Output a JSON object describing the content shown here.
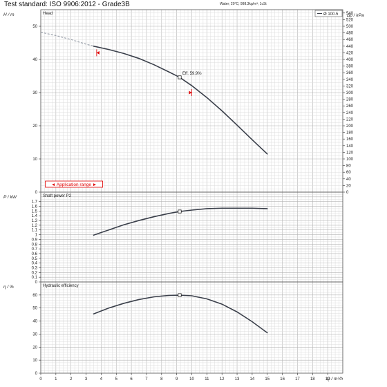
{
  "header": {
    "title": "Test standard: ISO 9906:2012 - Grade3B",
    "conditions": "Water; 20°C; 998.3kg/m³; 1cSt"
  },
  "legend": {
    "label": "Ø 100.5"
  },
  "application_range": {
    "label": "◄ Application range ►"
  },
  "chart_data": [
    {
      "type": "line",
      "panel": "head",
      "title": "Head",
      "xlabel": "Q / m³/h",
      "ylabel": "H / m",
      "y2label": "Δp / kPa",
      "xlim": [
        0,
        20
      ],
      "ylim": [
        0,
        55
      ],
      "y2lim": [
        0,
        550
      ],
      "xticks": [
        0,
        1,
        2,
        3,
        4,
        5,
        6,
        7,
        8,
        9,
        10,
        11,
        12,
        13,
        14,
        15,
        16,
        17,
        18,
        19
      ],
      "yticks": [
        0,
        10,
        20,
        30,
        40,
        50
      ],
      "y2ticks": [
        0,
        20,
        40,
        60,
        80,
        100,
        120,
        140,
        160,
        180,
        200,
        220,
        240,
        260,
        280,
        300,
        320,
        340,
        360,
        380,
        400,
        420,
        440,
        460,
        480,
        500,
        520,
        540
      ],
      "grid": true,
      "legend": "top-right",
      "series": [
        {
          "name": "Ø 100.5",
          "x": [
            3.5,
            4.5,
            5.5,
            6.5,
            7.5,
            8.5,
            9.2,
            10.0,
            11.0,
            12.0,
            13.0,
            14.0,
            15.0
          ],
          "y": [
            44.0,
            43.0,
            41.8,
            40.3,
            38.4,
            36.2,
            34.6,
            32.1,
            28.5,
            24.5,
            20.2,
            15.8,
            11.5
          ]
        },
        {
          "name": "extrapolation",
          "style": "dashed",
          "x": [
            0,
            1,
            2,
            3,
            3.5
          ],
          "y": [
            48.2,
            47.2,
            46.0,
            44.6,
            44.0
          ]
        }
      ],
      "annotations": [
        {
          "text": "Eff. 59.9%",
          "x": 9.2,
          "y": 34.6
        }
      ],
      "range_markers": [
        {
          "x": 3.7,
          "y": 42.0
        },
        {
          "x": 10.0,
          "y": 30.0
        }
      ]
    },
    {
      "type": "line",
      "panel": "power",
      "title": "Shaft power P2",
      "ylabel": "P / kW",
      "xlim": [
        0,
        20
      ],
      "ylim": [
        0,
        1.9
      ],
      "yticks": [
        0,
        0.1,
        0.2,
        0.3,
        0.4,
        0.5,
        0.6,
        0.7,
        0.8,
        0.9,
        1,
        1.1,
        1.2,
        1.3,
        1.4,
        1.5,
        1.6,
        1.7
      ],
      "ytick_labels": [
        "0",
        "0.1",
        "0.2",
        "0.3",
        "0.4",
        "0.5",
        "0.6",
        "0.7",
        "0.8",
        "0.9",
        "1",
        "1.1",
        "1.2",
        "1.3",
        "1.4",
        "1.5",
        "1.6",
        "1.7"
      ],
      "grid": true,
      "series": [
        {
          "name": "P2",
          "x": [
            3.5,
            4.5,
            5.5,
            6.5,
            7.5,
            8.5,
            9.2,
            10.0,
            11.0,
            12.0,
            13.0,
            14.0,
            15.0
          ],
          "y": [
            0.99,
            1.1,
            1.21,
            1.3,
            1.38,
            1.45,
            1.49,
            1.52,
            1.55,
            1.56,
            1.56,
            1.56,
            1.55
          ]
        }
      ],
      "markers": [
        {
          "x": 9.2,
          "y": 1.49
        }
      ]
    },
    {
      "type": "line",
      "panel": "efficiency",
      "title": "Hydraulic efficiency",
      "xlabel": "Q / m³/h",
      "ylabel": "η / %",
      "xlim": [
        0,
        20
      ],
      "ylim": [
        0,
        70
      ],
      "yticks": [
        0,
        10,
        20,
        30,
        40,
        50,
        60
      ],
      "grid": true,
      "series": [
        {
          "name": "efficiency",
          "x": [
            3.5,
            4.5,
            5.5,
            6.5,
            7.5,
            8.5,
            9.2,
            10.0,
            11.0,
            12.0,
            13.0,
            14.0,
            15.0
          ],
          "y": [
            45.5,
            50.0,
            53.6,
            56.5,
            58.6,
            59.7,
            59.9,
            59.4,
            57.0,
            53.0,
            47.0,
            39.5,
            31.0
          ]
        }
      ],
      "markers": [
        {
          "x": 9.2,
          "y": 59.9
        }
      ]
    }
  ]
}
